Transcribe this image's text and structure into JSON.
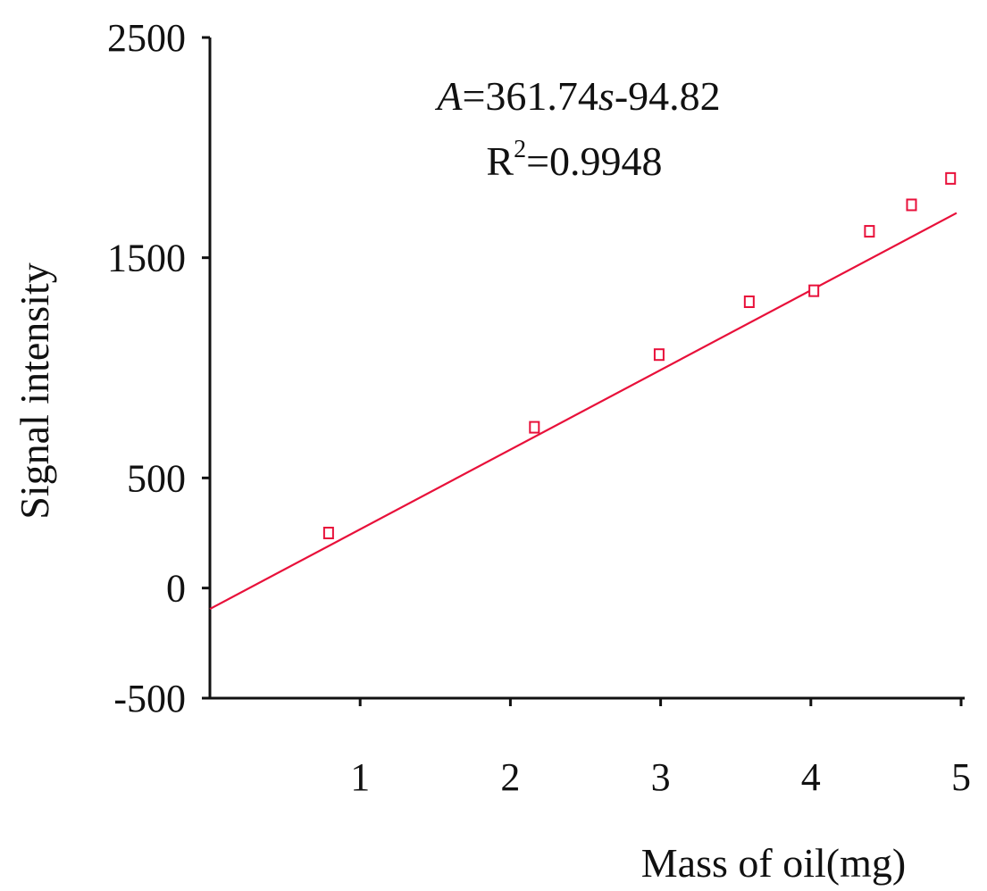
{
  "chart_data": {
    "type": "scatter",
    "title": "",
    "xlabel": "Mass of oil(mg)",
    "ylabel": "Signal intensity",
    "xlim": [
      0,
      5
    ],
    "ylim": [
      -500,
      2500
    ],
    "x_ticks": [
      1,
      2,
      3,
      4,
      5
    ],
    "x_tick_labels": [
      "1",
      "2",
      "3",
      "4",
      "5"
    ],
    "y_ticks": [
      -500,
      0,
      500,
      1500,
      2500
    ],
    "y_tick_labels": [
      "-500",
      "0",
      "500",
      "1500",
      "2500"
    ],
    "grid": false,
    "legend": "none",
    "series": [
      {
        "kind": "points",
        "marker": "open-square",
        "color": "#e8103a",
        "x": [
          0.79,
          2.16,
          2.99,
          3.59,
          4.02,
          4.39,
          4.67,
          4.93
        ],
        "y": [
          250,
          730,
          1060,
          1300,
          1350,
          1620,
          1740,
          1860
        ]
      },
      {
        "kind": "fit-line",
        "color": "#e8103a",
        "slope": 361.74,
        "intercept": -94.82
      }
    ],
    "annotations": {
      "equation_var": "A",
      "equation_mid": "=361.74",
      "equation_var2": "s",
      "equation_tail": "-94.82",
      "r2_label": "R",
      "r2_sup": "2",
      "r2_value": "=0.9948"
    }
  }
}
